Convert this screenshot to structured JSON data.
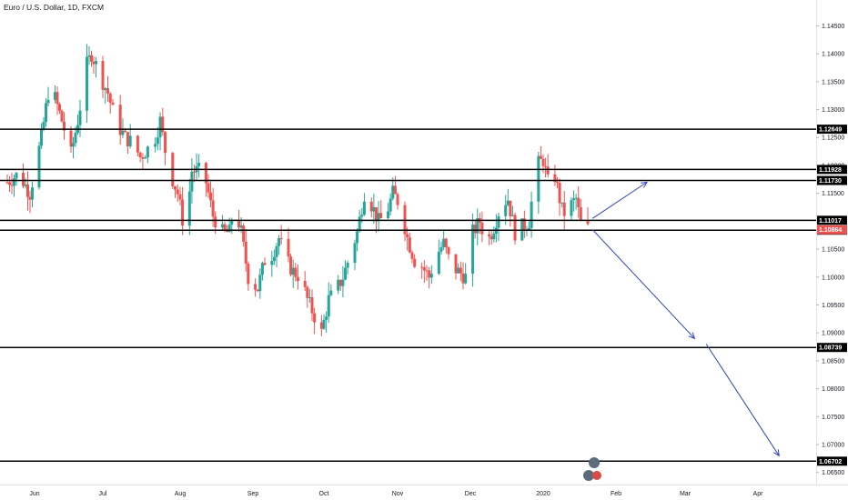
{
  "chart_data": {
    "type": "candlestick",
    "title": "Euro / U.S. Dollar, 1D, FXCM",
    "colors": {
      "up": "#26a69a",
      "down": "#ef5350",
      "level_line": "#000000",
      "projection": "#3344bb",
      "last_price_bg": "#ef5350"
    },
    "y_axis": {
      "range": [
        1.063,
        1.148
      ],
      "ticks": [
        {
          "value": 1.145,
          "label": "1.14500"
        },
        {
          "value": 1.14,
          "label": "1.14000"
        },
        {
          "value": 1.135,
          "label": "1.13500"
        },
        {
          "value": 1.13,
          "label": "1.13000"
        },
        {
          "value": 1.125,
          "label": "1.12500"
        },
        {
          "value": 1.12,
          "label": "1.12000"
        },
        {
          "value": 1.115,
          "label": "1.11500"
        },
        {
          "value": 1.105,
          "label": "1.10500"
        },
        {
          "value": 1.1,
          "label": "1.10000"
        },
        {
          "value": 1.095,
          "label": "1.09500"
        },
        {
          "value": 1.09,
          "label": "1.09000"
        },
        {
          "value": 1.085,
          "label": "1.08500"
        },
        {
          "value": 1.08,
          "label": "1.08000"
        },
        {
          "value": 1.075,
          "label": "1.07500"
        },
        {
          "value": 1.07,
          "label": "1.07000"
        },
        {
          "value": 1.065,
          "label": "1.06500"
        }
      ]
    },
    "x_axis": {
      "labels": [
        "Jun",
        "Jul",
        "Aug",
        "Sep",
        "Oct",
        "Nov",
        "Dec",
        "2020",
        "Feb",
        "Mar",
        "Apr"
      ]
    },
    "levels": [
      {
        "value": 1.12649,
        "label": "1.12649"
      },
      {
        "value": 1.11928,
        "label": "1.11928"
      },
      {
        "value": 1.1173,
        "label": "1.11730"
      },
      {
        "value": 1.11017,
        "label": "1.11017"
      },
      {
        "value": 1.1084,
        "label": "1.10840"
      },
      {
        "value": 1.08739,
        "label": "1.08739"
      },
      {
        "value": 1.06702,
        "label": "1.06702"
      }
    ],
    "last_price": {
      "value": 1.10864,
      "label": "1.10864"
    },
    "series": [
      {
        "name": "EURUSD",
        "close_path": [
          [
            "2019-05-20",
            1.117
          ],
          [
            "2019-05-25",
            1.1185
          ],
          [
            "2019-05-30",
            1.115
          ],
          [
            "2019-06-04",
            1.125
          ],
          [
            "2019-06-07",
            1.133
          ],
          [
            "2019-06-10",
            1.132
          ],
          [
            "2019-06-13",
            1.128
          ],
          [
            "2019-06-17",
            1.122
          ],
          [
            "2019-06-20",
            1.128
          ],
          [
            "2019-06-24",
            1.138
          ],
          [
            "2019-06-26",
            1.14
          ],
          [
            "2019-06-28",
            1.138
          ],
          [
            "2019-07-03",
            1.133
          ],
          [
            "2019-07-06",
            1.128
          ],
          [
            "2019-07-10",
            1.125
          ],
          [
            "2019-07-13",
            1.124
          ],
          [
            "2019-07-16",
            1.1215
          ],
          [
            "2019-07-19",
            1.123
          ],
          [
            "2019-07-22",
            1.125
          ],
          [
            "2019-07-24",
            1.128
          ],
          [
            "2019-07-27",
            1.12
          ],
          [
            "2019-07-31",
            1.115
          ],
          [
            "2019-08-03",
            1.108
          ],
          [
            "2019-08-06",
            1.119
          ],
          [
            "2019-08-09",
            1.119
          ],
          [
            "2019-08-12",
            1.117
          ],
          [
            "2019-08-15",
            1.111
          ],
          [
            "2019-08-19",
            1.108
          ],
          [
            "2019-08-22",
            1.108
          ],
          [
            "2019-08-24",
            1.113
          ],
          [
            "2019-08-27",
            1.108
          ],
          [
            "2019-08-30",
            1.1
          ],
          [
            "2019-09-03",
            1.098
          ],
          [
            "2019-09-06",
            1.103
          ],
          [
            "2019-09-09",
            1.104
          ],
          [
            "2019-09-12",
            1.107
          ],
          [
            "2019-09-15",
            1.103
          ],
          [
            "2019-09-18",
            1.101
          ],
          [
            "2019-09-21",
            1.1
          ],
          [
            "2019-09-24",
            1.096
          ],
          [
            "2019-09-27",
            1.093
          ],
          [
            "2019-09-30",
            1.09
          ],
          [
            "2019-10-03",
            1.096
          ],
          [
            "2019-10-06",
            1.0975
          ],
          [
            "2019-10-09",
            1.1
          ],
          [
            "2019-10-12",
            1.104
          ],
          [
            "2019-10-15",
            1.108
          ],
          [
            "2019-10-18",
            1.115
          ],
          [
            "2019-10-21",
            1.113
          ],
          [
            "2019-10-24",
            1.11
          ],
          [
            "2019-10-27",
            1.111
          ],
          [
            "2019-10-30",
            1.115
          ],
          [
            "2019-11-02",
            1.113
          ],
          [
            "2019-11-05",
            1.107
          ],
          [
            "2019-11-08",
            1.103
          ],
          [
            "2019-11-11",
            1.102
          ],
          [
            "2019-11-14",
            1.1
          ],
          [
            "2019-11-17",
            1.104
          ],
          [
            "2019-11-20",
            1.106
          ],
          [
            "2019-11-23",
            1.102
          ],
          [
            "2019-11-26",
            1.101
          ],
          [
            "2019-11-29",
            1.1
          ],
          [
            "2019-12-02",
            1.108
          ],
          [
            "2019-12-05",
            1.11
          ],
          [
            "2019-12-08",
            1.106
          ],
          [
            "2019-12-11",
            1.109
          ],
          [
            "2019-12-14",
            1.113
          ],
          [
            "2019-12-17",
            1.114
          ],
          [
            "2019-12-20",
            1.108
          ],
          [
            "2019-12-23",
            1.109
          ],
          [
            "2019-12-26",
            1.11
          ],
          [
            "2019-12-29",
            1.12
          ],
          [
            "2020-01-01",
            1.121
          ],
          [
            "2020-01-03",
            1.117
          ],
          [
            "2020-01-06",
            1.118
          ],
          [
            "2020-01-09",
            1.112
          ],
          [
            "2020-01-11",
            1.111
          ],
          [
            "2020-01-13",
            1.113
          ],
          [
            "2020-01-15",
            1.114
          ],
          [
            "2020-01-17",
            1.1095
          ],
          [
            "2020-01-20",
            1.10864
          ]
        ]
      }
    ],
    "projections": [
      {
        "from": [
          "2020-01-22",
          1.1105
        ],
        "to": [
          "2020-02-14",
          1.117
        ]
      },
      {
        "from": [
          "2020-01-22",
          1.1085
        ],
        "to": [
          "2020-03-05",
          1.089
        ]
      },
      {
        "from": [
          "2020-03-10",
          1.088
        ],
        "to": [
          "2020-04-10",
          1.068
        ]
      }
    ],
    "ylabel": "",
    "xlabel": ""
  }
}
